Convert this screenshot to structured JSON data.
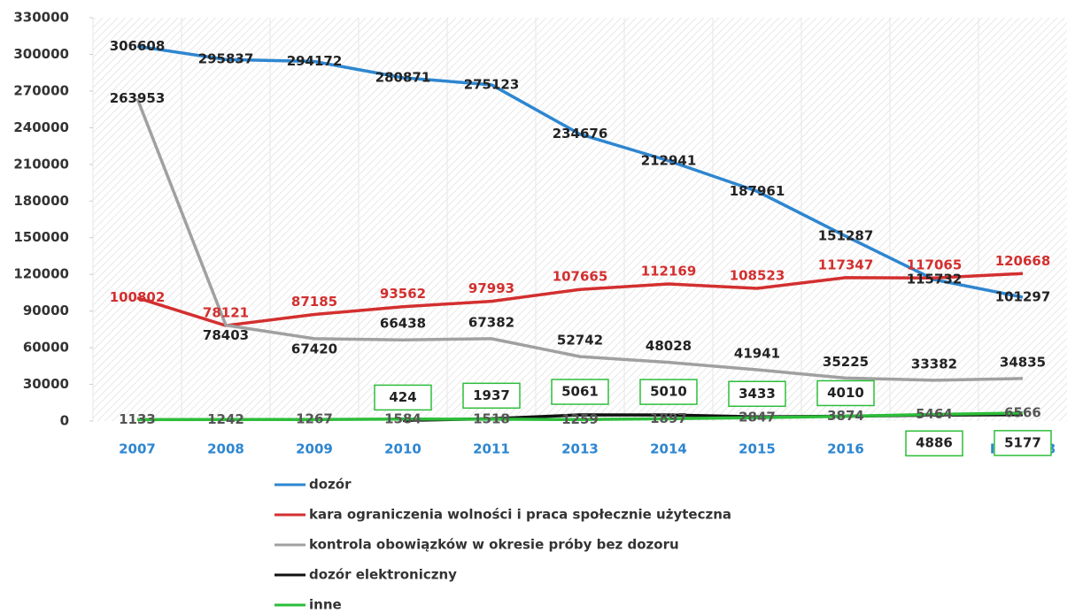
{
  "chart_data": {
    "type": "line",
    "categories": [
      "2007",
      "2008",
      "2009",
      "2010",
      "2011",
      "2013",
      "2014",
      "2015",
      "2016",
      "2017",
      "I p. 2018"
    ],
    "series": [
      {
        "name": "dozór",
        "color": "#2e86d0",
        "values": [
          306608,
          295837,
          294172,
          280871,
          275123,
          234676,
          212941,
          187961,
          151287,
          115732,
          101297
        ]
      },
      {
        "name": "kara ograniczenia wolności i praca społecznie użyteczna",
        "color": "#d32f2f",
        "values": [
          100802,
          78121,
          87185,
          93562,
          97993,
          107665,
          112169,
          108523,
          117347,
          117065,
          120668
        ]
      },
      {
        "name": "kontrola obowiązków w okresie próby bez dozoru",
        "color": "#a0a0a0",
        "values": [
          263953,
          78403,
          67420,
          66438,
          67382,
          52742,
          48028,
          41941,
          35225,
          33382,
          34835
        ]
      },
      {
        "name": "dozór elektroniczny",
        "color": "#111111",
        "values": [
          null,
          null,
          null,
          424,
          1937,
          5061,
          5010,
          3433,
          4010,
          4886,
          5177
        ]
      },
      {
        "name": "inne",
        "color": "#2dbd3a",
        "values": [
          1133,
          1242,
          1267,
          1584,
          1518,
          1259,
          1897,
          2847,
          3874,
          5464,
          6566
        ]
      }
    ],
    "ylim": [
      0,
      330000
    ],
    "yticks": [
      0,
      30000,
      60000,
      90000,
      120000,
      150000,
      180000,
      210000,
      240000,
      270000,
      300000,
      330000
    ],
    "legend": "bottom"
  }
}
